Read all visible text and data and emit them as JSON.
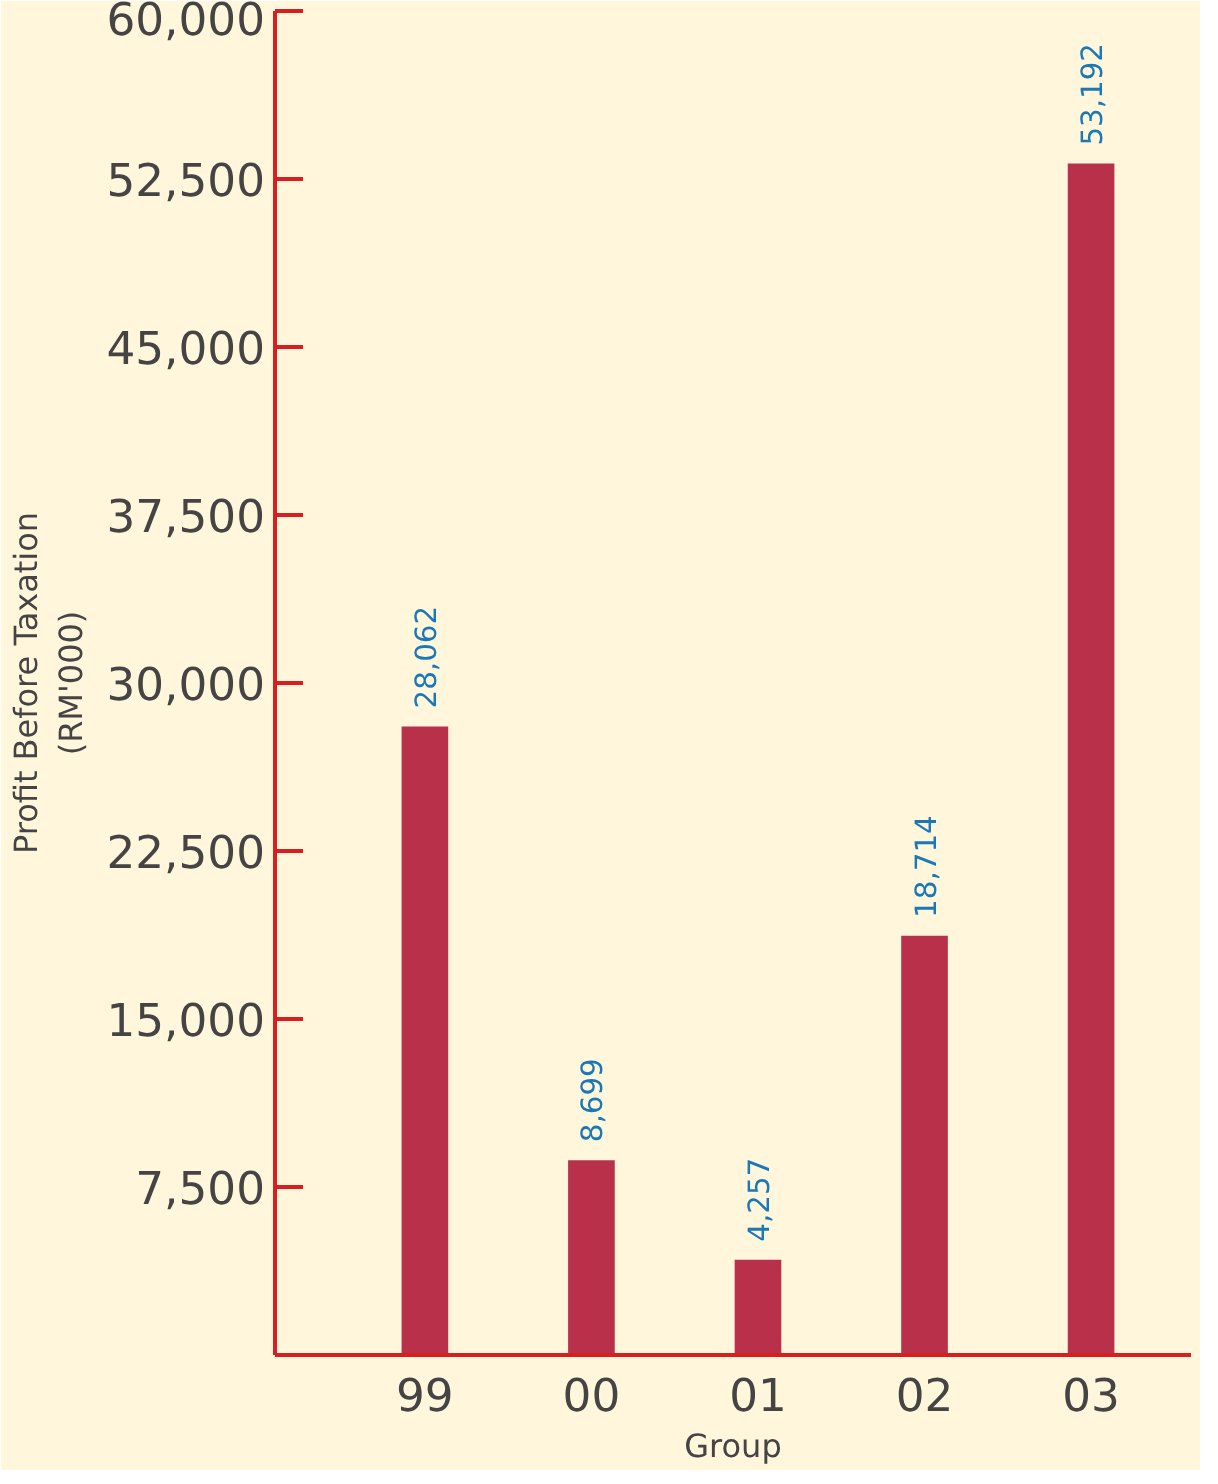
{
  "chart_data": {
    "type": "bar",
    "ylabel": "Profit Before Taxation\n(RM'000)",
    "xlabel": "Group",
    "categories": [
      "99",
      "00",
      "01",
      "02",
      "03"
    ],
    "values": [
      28062,
      8699,
      4257,
      18714,
      53192
    ],
    "color": "#b8304a",
    "value_labels": [
      "28,062",
      "8,699",
      "4,257",
      "18,714",
      "53,192"
    ],
    "ylim": [
      0,
      60000
    ],
    "yticks": [
      {
        "value": 7500,
        "label": "7,500"
      },
      {
        "value": 15000,
        "label": "15,000"
      },
      {
        "value": 22500,
        "label": "22,500"
      },
      {
        "value": 30000,
        "label": "30,000"
      },
      {
        "value": 37500,
        "label": "37,500"
      },
      {
        "value": 45000,
        "label": "45,000"
      },
      {
        "value": 52500,
        "label": "52,500"
      },
      {
        "value": 60000,
        "label": "60,000"
      }
    ],
    "grid": false
  }
}
